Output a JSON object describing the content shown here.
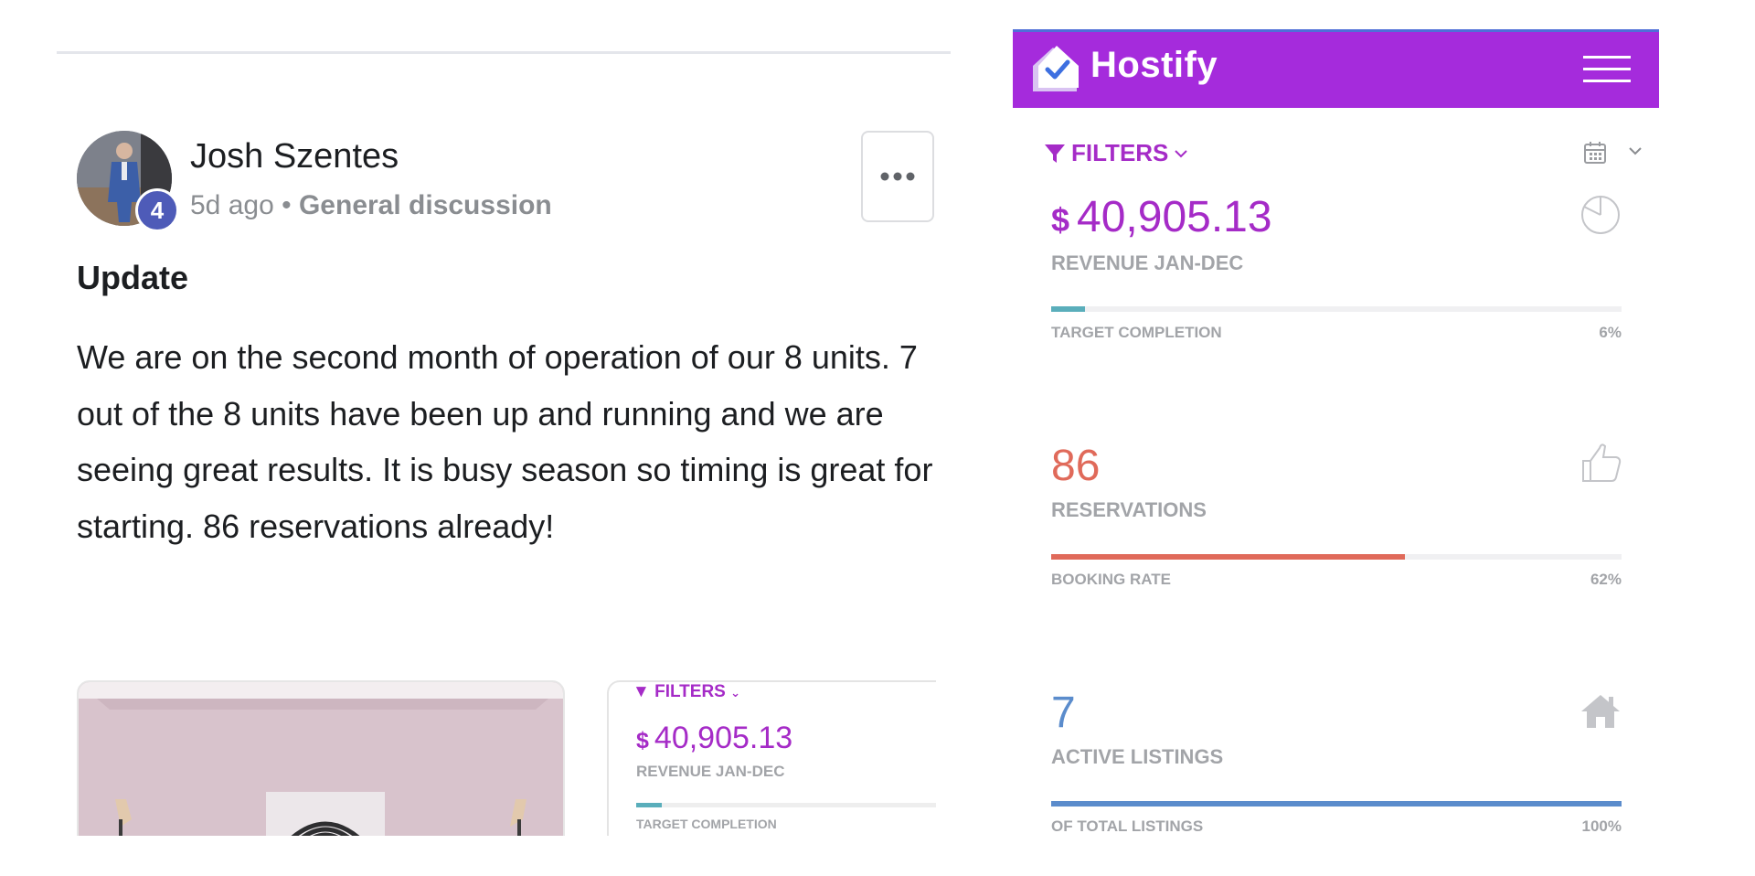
{
  "post": {
    "author": "Josh Szentes",
    "level": "4",
    "time_ago": "5d ago",
    "separator": "•",
    "category": "General discussion",
    "title": "Update",
    "body": "We are on the second month of operation of our 8 units. 7 out of the 8 units have been up and running and we are seeing great results. It is busy season so timing is great for starting. 86 reservations already!",
    "attachment_preview": {
      "filters_label": "FILTERS",
      "currency": "$",
      "revenue": "40,905.13",
      "revenue_label": "REVENUE JAN-DEC",
      "target_label": "TARGET COMPLETION"
    }
  },
  "dashboard": {
    "brand": "Hostify",
    "filters_label": "FILTERS",
    "colors": {
      "header": "#a52bdc",
      "accent": "#a52bc7",
      "revenue_bar": "#5aaebb",
      "reservations": "#e06a5a",
      "listings": "#5b8ccc"
    },
    "stats": [
      {
        "currency": "$",
        "value": "40,905.13",
        "label": "REVENUE JAN-DEC",
        "caption": "TARGET COMPLETION",
        "percent_text": "6%",
        "progress": 0.06,
        "icon": "pie-chart-icon"
      },
      {
        "value": "86",
        "label": "RESERVATIONS",
        "caption": "BOOKING RATE",
        "percent_text": "62%",
        "progress": 0.62,
        "icon": "thumbs-up-icon"
      },
      {
        "value": "7",
        "label": "ACTIVE LISTINGS",
        "caption": "OF TOTAL LISTINGS",
        "percent_text": "100%",
        "progress": 1.0,
        "icon": "home-icon"
      }
    ]
  }
}
